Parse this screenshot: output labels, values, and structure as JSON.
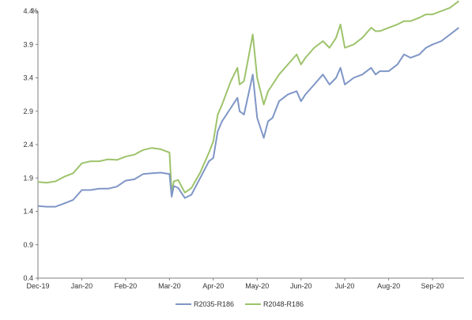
{
  "chart_data": {
    "type": "line",
    "title": "",
    "xlabel": "",
    "ylabel": "",
    "y_unit": "%",
    "ylim": [
      0.4,
      4.4
    ],
    "y_ticks": [
      "0.4",
      "0.9",
      "1.4",
      "1.9",
      "2.4",
      "2.9",
      "3.4",
      "3.9",
      "4.4"
    ],
    "x_ticks": [
      "Dec-19",
      "Jan-20",
      "Feb-20",
      "Mar-20",
      "Apr-20",
      "May-20",
      "Jun-20",
      "Jul-20",
      "Aug-20",
      "Sep-20"
    ],
    "grid": false,
    "legend_position": "bottom",
    "series": [
      {
        "name": "R2035-R186",
        "color": "#7f96c6",
        "x": [
          0,
          0.2,
          0.4,
          0.6,
          0.8,
          1.0,
          1.2,
          1.4,
          1.6,
          1.8,
          2.0,
          2.2,
          2.4,
          2.6,
          2.8,
          3.0,
          3.05,
          3.1,
          3.2,
          3.35,
          3.5,
          3.7,
          3.9,
          4.0,
          4.1,
          4.2,
          4.4,
          4.55,
          4.6,
          4.7,
          4.8,
          4.9,
          5.0,
          5.15,
          5.25,
          5.35,
          5.5,
          5.7,
          5.9,
          6.0,
          6.1,
          6.3,
          6.5,
          6.65,
          6.8,
          6.9,
          7.0,
          7.2,
          7.4,
          7.6,
          7.7,
          7.8,
          8.0,
          8.2,
          8.35,
          8.5,
          8.7,
          8.85,
          9.0,
          9.2,
          9.4,
          9.6
        ],
        "values": [
          1.48,
          1.47,
          1.47,
          1.52,
          1.57,
          1.72,
          1.72,
          1.74,
          1.74,
          1.77,
          1.86,
          1.88,
          1.96,
          1.97,
          1.98,
          1.96,
          1.62,
          1.78,
          1.75,
          1.6,
          1.65,
          1.9,
          2.15,
          2.2,
          2.6,
          2.75,
          2.95,
          3.1,
          2.9,
          2.85,
          3.15,
          3.45,
          2.8,
          2.5,
          2.75,
          2.8,
          3.05,
          3.15,
          3.2,
          3.05,
          3.15,
          3.3,
          3.45,
          3.3,
          3.4,
          3.55,
          3.3,
          3.4,
          3.45,
          3.55,
          3.45,
          3.5,
          3.5,
          3.6,
          3.75,
          3.7,
          3.75,
          3.85,
          3.9,
          3.95,
          4.05,
          4.15
        ]
      },
      {
        "name": "R2048-R186",
        "color": "#9dc36b",
        "x": [
          0,
          0.2,
          0.4,
          0.6,
          0.8,
          1.0,
          1.2,
          1.4,
          1.6,
          1.8,
          2.0,
          2.2,
          2.4,
          2.6,
          2.8,
          3.0,
          3.05,
          3.1,
          3.2,
          3.35,
          3.5,
          3.7,
          3.9,
          4.0,
          4.1,
          4.2,
          4.4,
          4.55,
          4.6,
          4.7,
          4.8,
          4.9,
          5.0,
          5.15,
          5.25,
          5.35,
          5.5,
          5.7,
          5.9,
          6.0,
          6.1,
          6.3,
          6.5,
          6.65,
          6.8,
          6.9,
          7.0,
          7.2,
          7.4,
          7.6,
          7.7,
          7.8,
          8.0,
          8.2,
          8.35,
          8.5,
          8.7,
          8.85,
          9.0,
          9.2,
          9.4,
          9.6
        ],
        "values": [
          1.84,
          1.83,
          1.85,
          1.92,
          1.97,
          2.12,
          2.15,
          2.15,
          2.18,
          2.17,
          2.22,
          2.25,
          2.32,
          2.35,
          2.33,
          2.28,
          1.68,
          1.85,
          1.87,
          1.68,
          1.75,
          1.98,
          2.28,
          2.45,
          2.85,
          3.0,
          3.35,
          3.55,
          3.3,
          3.35,
          3.7,
          4.05,
          3.4,
          3.0,
          3.2,
          3.3,
          3.45,
          3.6,
          3.75,
          3.6,
          3.7,
          3.85,
          3.95,
          3.85,
          4.0,
          4.2,
          3.85,
          3.9,
          4.0,
          4.15,
          4.1,
          4.1,
          4.15,
          4.2,
          4.25,
          4.25,
          4.3,
          4.35,
          4.35,
          4.4,
          4.45,
          4.55
        ]
      }
    ]
  }
}
